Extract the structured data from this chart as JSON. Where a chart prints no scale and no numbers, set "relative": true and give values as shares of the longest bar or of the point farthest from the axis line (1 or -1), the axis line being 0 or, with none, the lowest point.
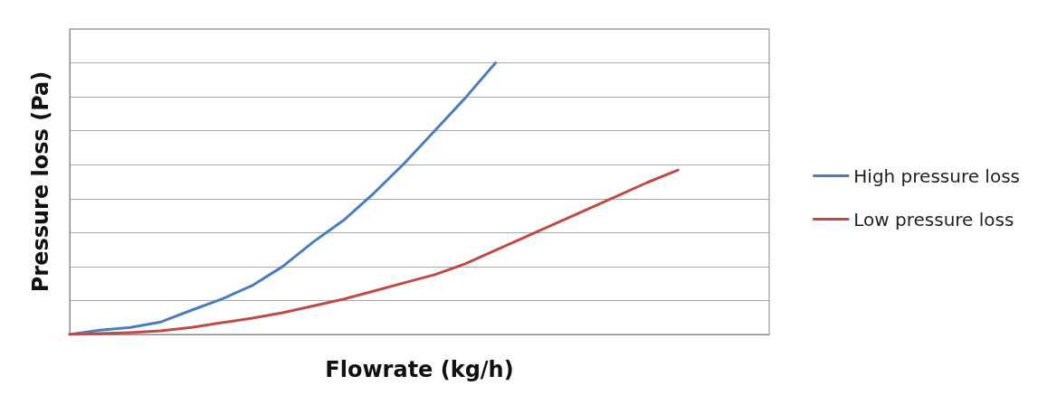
{
  "chart_data": {
    "type": "line",
    "xlabel": "Flowrate (kg/h)",
    "ylabel": "Pressure loss (Pa)",
    "relative": true,
    "grid": "y",
    "legend": "right",
    "marker": "none",
    "line_style": "solid",
    "categories": [
      null,
      null,
      null,
      null,
      null,
      null,
      null,
      null,
      null,
      null,
      null,
      null,
      null,
      null,
      null,
      null,
      null,
      null,
      null,
      null,
      null,
      null,
      null,
      null
    ],
    "series": [
      {
        "name": "High pressure loss",
        "color": "#4a7ebb",
        "values": [
          0,
          0.016,
          0.026,
          0.046,
          0.089,
          0.13,
          0.18,
          0.25,
          0.34,
          0.42,
          0.52,
          0.63,
          0.75,
          0.87,
          1,
          null,
          null,
          null,
          null,
          null,
          null,
          null,
          null,
          null
        ]
      },
      {
        "name": "Low pressure loss",
        "color": "#be4b48",
        "values": [
          0,
          0.003,
          0.007,
          0.013,
          0.026,
          0.043,
          0.06,
          0.08,
          0.105,
          0.13,
          0.16,
          0.19,
          0.22,
          0.26,
          0.31,
          0.36,
          0.41,
          0.46,
          0.51,
          0.56,
          0.605,
          null,
          null,
          null
        ]
      }
    ]
  }
}
